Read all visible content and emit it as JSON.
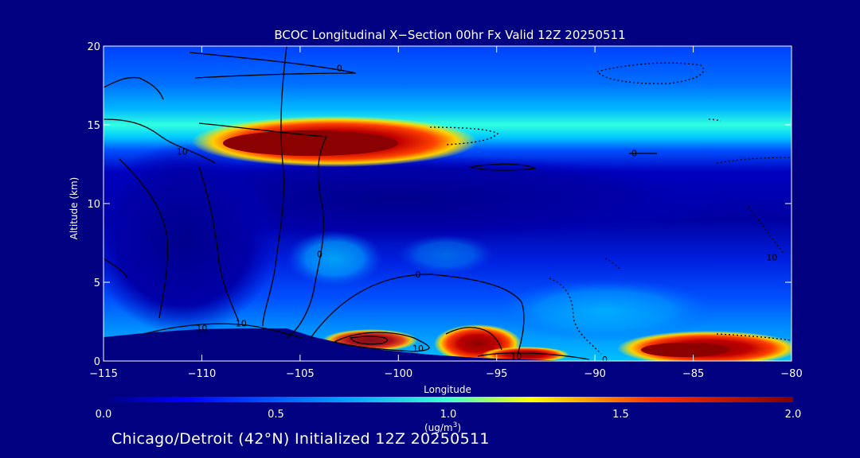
{
  "chart_data": {
    "type": "heatmap",
    "title": "BCOC Longitudinal X−Section 00hr  Fx Valid 12Z 20250511",
    "xlabel": "Longitude",
    "ylabel": "Altitude (km)",
    "xlim": [
      -115,
      -80
    ],
    "ylim": [
      0,
      20
    ],
    "x_ticks": [
      "−115",
      "−110",
      "−105",
      "−100",
      "−95",
      "−90",
      "−85",
      "−80"
    ],
    "y_ticks": [
      "0",
      "5",
      "10",
      "15",
      "20"
    ],
    "colorbar": {
      "range": [
        0.0,
        2.0
      ],
      "tick_labels": [
        "0.0",
        "0.5",
        "1.0",
        "1.5",
        "2.0"
      ],
      "unit": "(ug/m",
      "unit_sup": "3",
      "unit_close": ")",
      "colormap": [
        "#00007f",
        "#0000ff",
        "#00c8ff",
        "#ffff00",
        "#ff0000",
        "#7f0000"
      ]
    },
    "concentration_features": [
      {
        "lon": [
          -108,
          -97
        ],
        "alt": [
          13.2,
          14.8
        ],
        "value": 2.0
      },
      {
        "lon": [
          -115,
          -80
        ],
        "alt": [
          12.5,
          15.5
        ],
        "value": 0.9
      },
      {
        "lon": [
          -97,
          -93
        ],
        "alt": [
          0.3,
          2.0
        ],
        "value": 1.9
      },
      {
        "lon": [
          -88,
          -80
        ],
        "alt": [
          0.3,
          1.5
        ],
        "value": 1.9
      },
      {
        "lon": [
          -115,
          -80
        ],
        "alt": [
          15.5,
          20
        ],
        "value": 0.5
      },
      {
        "lon": [
          -115,
          -80
        ],
        "alt": [
          0,
          12.5
        ],
        "value": 0.2
      }
    ],
    "contour_labels": [
      {
        "text": "0",
        "lon": -103,
        "alt": 18.6
      },
      {
        "text": "10",
        "lon": -111,
        "alt": 13.3
      },
      {
        "text": "0",
        "lon": -88,
        "alt": 13.2
      },
      {
        "text": "0",
        "lon": -104,
        "alt": 6.8
      },
      {
        "text": "0",
        "lon": -99,
        "alt": 5.5
      },
      {
        "text": "10",
        "lon": -81,
        "alt": 6.6
      },
      {
        "text": "10",
        "lon": -108,
        "alt": 2.4
      },
      {
        "text": "10",
        "lon": -110,
        "alt": 2.1
      },
      {
        "text": "10",
        "lon": -99,
        "alt": 0.8
      },
      {
        "text": "10",
        "lon": -94,
        "alt": 0.3
      },
      {
        "text": "0",
        "lon": -89.5,
        "alt": 0.1
      }
    ]
  },
  "footer": {
    "location_label": "Chicago/Detroit (42°N) Initialized 12Z 20250511"
  }
}
